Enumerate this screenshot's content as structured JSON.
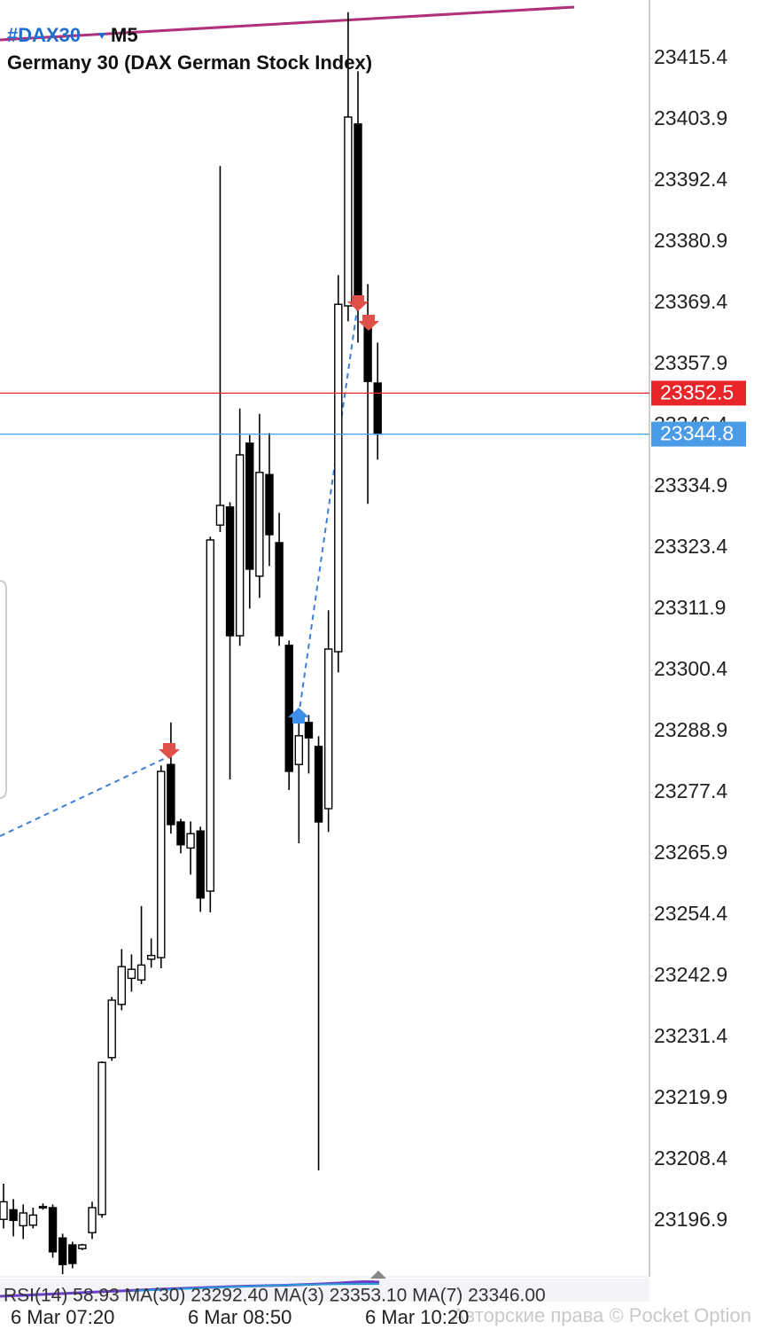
{
  "chart_data": {
    "type": "candlestick",
    "symbol": "#DAX30",
    "timeframe": "M5",
    "title": "Germany 30 (DAX German Stock Index)",
    "categories": [
      null,
      null,
      null,
      null,
      null,
      null,
      "6 Mar 07:20",
      null,
      null,
      null,
      null,
      null,
      null,
      null,
      null,
      null,
      null,
      null,
      null,
      null,
      null,
      null,
      null,
      null,
      "6 Mar 08:50",
      null,
      null,
      null,
      null,
      null,
      null,
      null,
      null,
      null,
      null,
      null,
      null,
      null,
      null,
      null,
      null,
      null,
      "6 Mar 10:20"
    ],
    "open": [
      23197.2,
      23199.0,
      23196.0,
      23196.1,
      23199.4,
      23199.4,
      23193.7,
      23192.4,
      23191.7,
      23194.7,
      23198.1,
      23227.6,
      23237.6,
      23242.5,
      23242.2,
      23246.1,
      23246.4,
      23282.7,
      23271.9,
      23267.0,
      23270.2,
      23258.9,
      23327.7,
      23331.1,
      23306.9,
      23343.1,
      23318.1,
      23337.2,
      23324.4,
      23305.1,
      23282.7,
      23290.6,
      23286.1,
      23274.4,
      23303.9,
      23368.9,
      23403.1,
      23366.4,
      23354.4,
      null,
      null,
      null,
      null
    ],
    "high": [
      23203.9,
      23201.0,
      23200.0,
      23199.4,
      23200.2,
      23200.0,
      23194.5,
      23193.0,
      23192.6,
      23200.5,
      23226.9,
      23239.0,
      23248.0,
      23247.0,
      23256.1,
      23250.0,
      23282.5,
      23290.6,
      23272.5,
      23272.0,
      23271.0,
      23325.5,
      23395.2,
      23332.0,
      23349.6,
      23344.6,
      23348.6,
      23345.0,
      23330.0,
      23306.0,
      23290.5,
      23292.0,
      23288.0,
      23311.7,
      23374.7,
      23424.1,
      23413.0,
      23373.0,
      23362.0,
      null,
      null,
      null,
      null
    ],
    "low": [
      23195.5,
      23194.0,
      23193.5,
      23195.5,
      23199.0,
      23190.0,
      23186.9,
      23188.0,
      23191.4,
      23193.5,
      23197.5,
      23227.0,
      23236.5,
      23240.0,
      23241.4,
      23244.5,
      23244.4,
      23269.7,
      23266.0,
      23262.0,
      23255.0,
      23254.9,
      23326.4,
      23279.9,
      23305.0,
      23312.0,
      23314.0,
      23320.0,
      23305.0,
      23277.9,
      23267.9,
      23281.0,
      23206.4,
      23270.0,
      23300.0,
      23366.0,
      23362.0,
      23331.7,
      23340.0,
      null,
      null,
      null,
      null
    ],
    "close": [
      23200.5,
      23197.0,
      23198.4,
      23198.0,
      23199.6,
      23191.1,
      23188.7,
      23188.9,
      23192.4,
      23199.4,
      23226.7,
      23238.4,
      23244.7,
      23244.2,
      23245.0,
      23246.8,
      23281.4,
      23271.4,
      23267.6,
      23269.7,
      23257.6,
      23324.9,
      23331.4,
      23306.9,
      23340.9,
      23319.4,
      23337.6,
      23325.9,
      23306.9,
      23281.4,
      23288.1,
      23287.7,
      23271.9,
      23304.4,
      23369.2,
      23404.4,
      23368.9,
      23354.7,
      23344.8,
      null,
      null,
      null,
      null
    ],
    "up_color": "#ffffff",
    "down_color": "#000000",
    "ylim": [
      23186.4,
      23426.4
    ],
    "yticks": [
      23196.9,
      23208.4,
      23219.9,
      23231.4,
      23242.9,
      23254.4,
      23265.9,
      23277.4,
      23288.9,
      23300.4,
      23311.9,
      23323.4,
      23334.9,
      23346.4,
      23357.9,
      23369.4,
      23380.9,
      23392.4,
      23403.9,
      23415.4
    ],
    "price_lines": [
      {
        "value": 23352.5,
        "color": "#e8262a"
      },
      {
        "value": 23344.8,
        "color": "#4a9be8"
      }
    ],
    "indicator_text": "RSI(14) 58.93 MA(30) 23292.40 MA(3) 23353.10 MA(7) 23346.00",
    "watermark": "Авторские права © Pocket Option"
  }
}
